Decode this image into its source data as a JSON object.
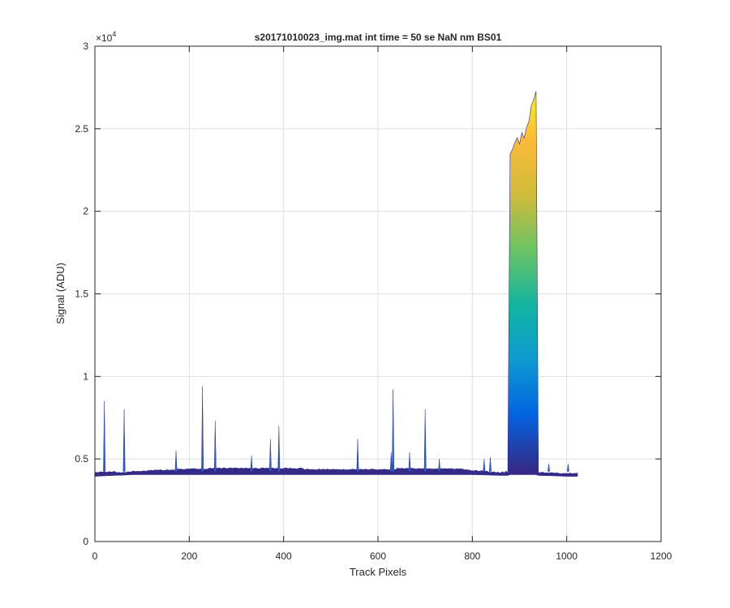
{
  "chart_data": {
    "type": "area",
    "title": "s20171010023_img.mat int time = 50 se  NaN nm BS01",
    "xlabel": "Track Pixels",
    "ylabel": "Signal (ADU)",
    "xlim": [
      0,
      1200
    ],
    "ylim": [
      0,
      30000
    ],
    "xticks": [
      0,
      200,
      400,
      600,
      800,
      1000,
      1200
    ],
    "yticks": [
      0,
      5000,
      10000,
      15000,
      20000,
      25000,
      30000
    ],
    "xtick_labels": [
      "0",
      "200",
      "400",
      "600",
      "800",
      "1000",
      "1200"
    ],
    "ytick_labels": [
      "0",
      "0.5",
      "1",
      "1.5",
      "2",
      "2.5",
      "3"
    ],
    "y_exponent": "×10",
    "y_exponent_power": "4",
    "grid": true,
    "colormap": "parula",
    "colormap_colors": [
      "#352a87",
      "#0363e1",
      "#0d9bd1",
      "#13b4a0",
      "#6cc363",
      "#d1bb3b",
      "#fbba38",
      "#f9fb0e"
    ],
    "baseline_level": 4250,
    "x": [
      0,
      20,
      40,
      60,
      80,
      100,
      120,
      140,
      160,
      180,
      200,
      250,
      300,
      350,
      400,
      450,
      500,
      550,
      600,
      650,
      700,
      750,
      780,
      800,
      820,
      840,
      860,
      875,
      880,
      885,
      890,
      895,
      900,
      905,
      910,
      915,
      920,
      925,
      930,
      935,
      940,
      960,
      980,
      1000,
      1023
    ],
    "y": [
      4150,
      4180,
      4200,
      4220,
      4260,
      4300,
      4330,
      4350,
      4380,
      4400,
      4420,
      4420,
      4410,
      4400,
      4400,
      4400,
      4390,
      4390,
      4390,
      4390,
      4390,
      4380,
      4340,
      4270,
      4240,
      4220,
      4200,
      4200,
      23500,
      23800,
      24200,
      24600,
      24100,
      24800,
      24500,
      25200,
      25600,
      26400,
      26800,
      27300,
      4200,
      4190,
      4170,
      4150,
      4150
    ],
    "spikes": [
      {
        "x": 20,
        "y": 8500
      },
      {
        "x": 62,
        "y": 8000
      },
      {
        "x": 172,
        "y": 5500
      },
      {
        "x": 228,
        "y": 9400
      },
      {
        "x": 255,
        "y": 7300
      },
      {
        "x": 332,
        "y": 5200
      },
      {
        "x": 372,
        "y": 6200
      },
      {
        "x": 390,
        "y": 7000
      },
      {
        "x": 557,
        "y": 6200
      },
      {
        "x": 628,
        "y": 5400
      },
      {
        "x": 632,
        "y": 9200
      },
      {
        "x": 667,
        "y": 5400
      },
      {
        "x": 700,
        "y": 8000
      },
      {
        "x": 730,
        "y": 5000
      },
      {
        "x": 825,
        "y": 5000
      },
      {
        "x": 838,
        "y": 5100
      },
      {
        "x": 962,
        "y": 4700
      },
      {
        "x": 1003,
        "y": 4700
      }
    ]
  }
}
